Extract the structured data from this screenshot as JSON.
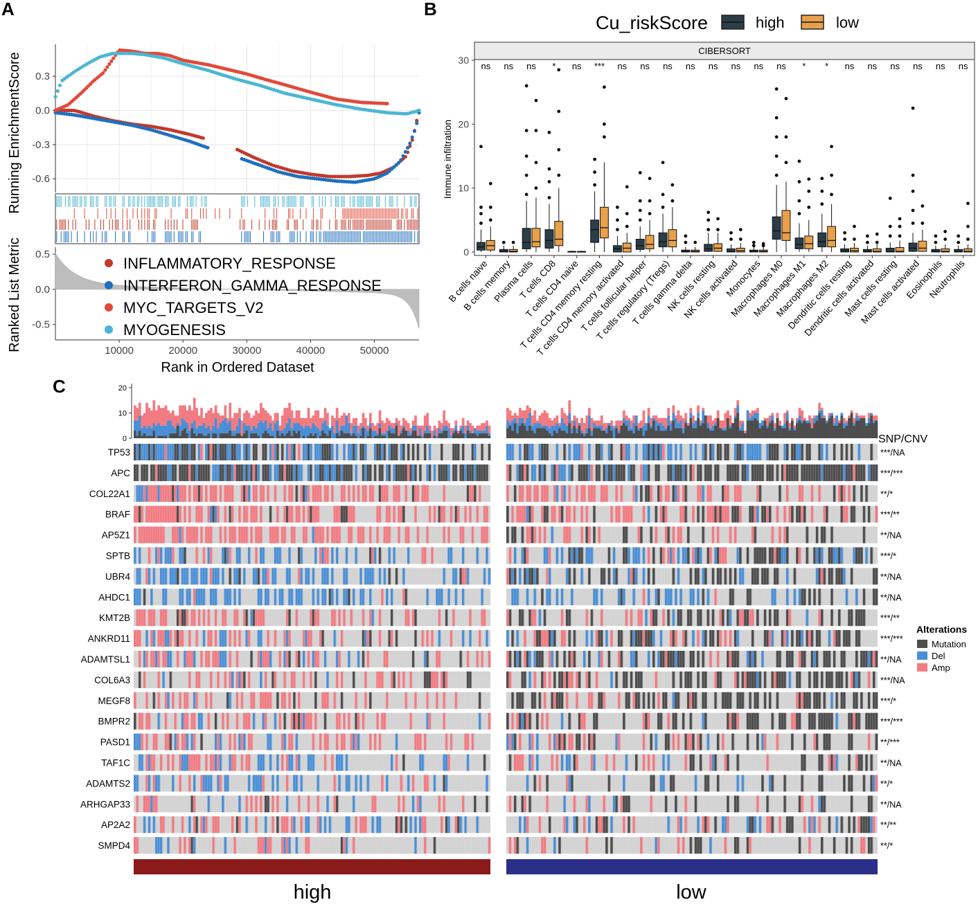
{
  "panel_labels": {
    "a": "A",
    "b": "B",
    "c": "C"
  },
  "colors": {
    "inflammatory": "#c0392b",
    "interferon": "#1f6fbf",
    "myc": "#e04a3a",
    "myogenesis": "#4bb6d3",
    "high": "#2b3e48",
    "low": "#e8a04a",
    "mutation": "#4d4d4d",
    "del": "#4a8fd6",
    "amp": "#f27b82",
    "none": "#d3d3d3",
    "high_bar": "#8b1a1a",
    "low_bar": "#2b2f8a"
  },
  "chart_data": [
    {
      "type": "line",
      "panel": "A",
      "title": "",
      "xlabel": "Rank in Ordered Dataset",
      "ylabel_top": "Running EnrichmentScore",
      "ylabel_bottom": "Ranked List Metric",
      "xlim": [
        0,
        57000
      ],
      "x_ticks": [
        10000,
        20000,
        30000,
        40000,
        50000
      ],
      "x_tick_labels": [
        "10000",
        "20000",
        "30000",
        "40000",
        "50000"
      ],
      "es_ylim": [
        -0.72,
        0.58
      ],
      "es_ticks": [
        0.3,
        0.0,
        -0.3,
        -0.6
      ],
      "es_tick_labels": [
        "0.3",
        "0.0",
        "-0.3",
        "-0.6"
      ],
      "metric_ylim": [
        -0.72,
        0.6
      ],
      "metric_ticks": [
        0.5,
        0.0,
        -0.5
      ],
      "metric_tick_labels": [
        "0.5",
        "0.0",
        "-0.5"
      ],
      "series": [
        {
          "name": "INFLAMMATORY_RESPONSE",
          "color_key": "inflammatory",
          "x": [
            0,
            3000,
            6000,
            9000,
            12000,
            15000,
            18000,
            21000,
            23000,
            28000,
            31000,
            34000,
            37000,
            40000,
            43000,
            46000,
            49000,
            51000,
            53000,
            55000,
            56000,
            57000
          ],
          "y": [
            0.0,
            0.0,
            -0.05,
            -0.09,
            -0.12,
            -0.14,
            -0.17,
            -0.21,
            -0.24,
            -0.33,
            -0.41,
            -0.48,
            -0.53,
            -0.56,
            -0.58,
            -0.58,
            -0.57,
            -0.55,
            -0.5,
            -0.4,
            -0.25,
            0.0
          ]
        },
        {
          "name": "INTERFERON_GAMMA_RESPONSE",
          "color_key": "interferon",
          "x": [
            0,
            3000,
            6000,
            9000,
            12000,
            15000,
            18000,
            21000,
            23500,
            29000,
            32000,
            35000,
            38000,
            41000,
            44000,
            47000,
            50000,
            52000,
            54000,
            55500,
            56500,
            57000
          ],
          "y": [
            -0.02,
            -0.04,
            -0.07,
            -0.1,
            -0.13,
            -0.17,
            -0.22,
            -0.27,
            -0.32,
            -0.42,
            -0.48,
            -0.54,
            -0.58,
            -0.6,
            -0.62,
            -0.63,
            -0.6,
            -0.55,
            -0.45,
            -0.3,
            -0.15,
            -0.02
          ]
        },
        {
          "name": "MYC_TARGETS_V2",
          "color_key": "myc",
          "x": [
            0,
            2000,
            4000,
            6000,
            7500,
            9000,
            10000,
            12000,
            14000,
            16000,
            18000,
            20000,
            22000,
            24000,
            27000,
            30000,
            33000,
            35000,
            40000,
            44000,
            48000,
            52000
          ],
          "y": [
            0.0,
            0.05,
            0.15,
            0.26,
            0.33,
            0.45,
            0.53,
            0.52,
            0.5,
            0.5,
            0.48,
            0.44,
            0.42,
            0.4,
            0.36,
            0.32,
            0.27,
            0.24,
            0.16,
            0.1,
            0.07,
            0.06
          ]
        },
        {
          "name": "MYOGENESIS",
          "color_key": "myogenesis",
          "x": [
            0,
            1000,
            3000,
            5000,
            7000,
            9000,
            10000,
            12000,
            14000,
            17000,
            20000,
            24000,
            28000,
            32000,
            36000,
            40000,
            44000,
            48000,
            52000,
            55000,
            56500,
            57000
          ],
          "y": [
            0.12,
            0.26,
            0.34,
            0.41,
            0.47,
            0.5,
            0.5,
            0.5,
            0.49,
            0.46,
            0.41,
            0.35,
            0.28,
            0.22,
            0.15,
            0.1,
            0.05,
            0.01,
            -0.02,
            -0.03,
            -0.01,
            0.0
          ]
        }
      ]
    },
    {
      "type": "box",
      "panel": "B",
      "title": "CIBERSORT",
      "legend_title": "Cu_riskScore",
      "legend_labels": [
        "high",
        "low"
      ],
      "ylabel": "Immune infiltration",
      "ylim": [
        0,
        30
      ],
      "y_ticks": [
        0,
        10,
        20,
        30
      ],
      "y_tick_labels": [
        "0",
        "10",
        "20",
        "30"
      ],
      "categories": [
        "B cells naive",
        "B cells memory",
        "Plasma cells",
        "T cells CD8",
        "T cells CD4 naive",
        "T cells CD4 memory resting",
        "T cells CD4 memory activated",
        "T cells follicular helper",
        "T cells regulatory (Tregs)",
        "T cells gamma delta",
        "NK cells resting",
        "NK cells activated",
        "Monocytes",
        "Macrophages M0",
        "Macrophages M1",
        "Macrophages M2",
        "Dendritic cells resting",
        "Dendritic cells activated",
        "Mast cells resting",
        "Mast cells activated",
        "Eosinophils",
        "Neutrophils"
      ],
      "significance": [
        "ns",
        "ns",
        "ns",
        "*",
        "ns",
        "***",
        "ns",
        "ns",
        "ns",
        "ns",
        "ns",
        "ns",
        "ns",
        "ns",
        "*",
        "*",
        "ns",
        "ns",
        "ns",
        "ns",
        "ns",
        "ns"
      ],
      "series": [
        {
          "name": "high",
          "q1": [
            0.3,
            0,
            0.5,
            0.6,
            0,
            1.5,
            0,
            0.4,
            0.8,
            0,
            0.1,
            0,
            0,
            2.0,
            0.5,
            0.8,
            0,
            0,
            0,
            0.1,
            0,
            0
          ],
          "median": [
            0.8,
            0.1,
            1.5,
            1.8,
            0,
            3.5,
            0.5,
            1.0,
            1.6,
            0.1,
            0.5,
            0.1,
            0.1,
            3.3,
            1.2,
            1.6,
            0.2,
            0.1,
            0.1,
            0.6,
            0.1,
            0.1
          ],
          "q3": [
            1.5,
            0.4,
            3.7,
            3.5,
            0.1,
            5.0,
            1.0,
            2.0,
            3.0,
            0.3,
            1.2,
            0.5,
            0.3,
            5.5,
            2.2,
            3.0,
            0.5,
            0.4,
            0.6,
            1.4,
            0.4,
            0.4
          ],
          "whisker_low": [
            0,
            0,
            0,
            0,
            0,
            0,
            0,
            0,
            0,
            0,
            0,
            0,
            0,
            0,
            0,
            0,
            0,
            0,
            0,
            0,
            0,
            0
          ],
          "whisker_high": [
            3.5,
            1.0,
            8.0,
            7.5,
            0.2,
            9.5,
            2.5,
            4.0,
            6.0,
            0.8,
            3.0,
            1.2,
            0.8,
            10.5,
            4.5,
            6.0,
            1.2,
            1.0,
            1.5,
            3.0,
            1.0,
            1.0
          ],
          "outliers": [
            [
              4.5,
              6,
              7,
              16.5
            ],
            [
              1.5
            ],
            [
              9,
              12,
              15,
              19,
              26
            ],
            [
              8.5,
              11,
              13,
              18.7
            ],
            [],
            [
              10.5,
              12.5,
              14.5
            ],
            [
              3.5,
              5,
              7
            ],
            [
              5,
              6.5,
              8,
              12.4
            ],
            [
              7,
              9,
              14
            ],
            [
              1.5,
              2.5
            ],
            [
              3.5,
              5,
              6.2
            ],
            [
              2,
              3
            ],
            [
              1,
              1.5
            ],
            [
              12,
              15,
              18,
              21,
              25.5
            ],
            [
              6,
              8,
              11,
              14.2
            ],
            [
              7.5,
              9.5,
              11.5
            ],
            [
              2,
              3
            ],
            [
              1.5,
              2.5
            ],
            [
              2.5,
              4,
              8.4
            ],
            [
              4.5,
              6.5,
              9.5,
              12,
              22.5
            ],
            [
              1.5,
              2.5
            ],
            [
              1.5,
              2.5
            ]
          ]
        },
        {
          "name": "low",
          "q1": [
            0.3,
            0,
            0.8,
            1.0,
            0,
            2.2,
            0,
            0.5,
            0.8,
            0,
            0.1,
            0,
            0,
            1.8,
            0.5,
            0.8,
            0,
            0,
            0,
            0.1,
            0,
            0
          ],
          "median": [
            1.0,
            0.1,
            1.6,
            2.0,
            0,
            3.8,
            0.6,
            1.2,
            1.8,
            0.1,
            0.6,
            0.2,
            0.1,
            3.0,
            1.3,
            1.8,
            0.2,
            0.1,
            0.1,
            0.6,
            0.1,
            0.1
          ],
          "q3": [
            1.8,
            0.4,
            3.7,
            4.8,
            0.1,
            7.0,
            1.4,
            2.6,
            3.5,
            0.3,
            1.3,
            0.6,
            0.3,
            6.5,
            2.5,
            4.0,
            0.6,
            0.5,
            0.7,
            1.7,
            0.5,
            0.5
          ],
          "whisker_low": [
            0,
            0,
            0,
            0,
            0,
            0,
            0,
            0,
            0,
            0,
            0,
            0,
            0,
            0,
            0,
            0,
            0,
            0,
            0,
            0,
            0,
            0
          ],
          "whisker_high": [
            4.0,
            1.0,
            8.5,
            10.0,
            0.2,
            14.0,
            3.0,
            5.0,
            7.0,
            0.8,
            3.0,
            1.4,
            0.8,
            11.0,
            5.0,
            7.5,
            1.4,
            1.2,
            1.8,
            3.5,
            1.2,
            1.2
          ],
          "outliers": [
            [
              5,
              7,
              10.7
            ],
            [
              1.5
            ],
            [
              10,
              14,
              19,
              23.7
            ],
            [
              12,
              16,
              22,
              28.5
            ],
            [],
            [
              18,
              20,
              25.8
            ],
            [
              4,
              6,
              10.2
            ],
            [
              6,
              8,
              11.5
            ],
            [
              8,
              10.5
            ],
            [
              1.5
            ],
            [
              3.5,
              5.2
            ],
            [
              2,
              3.5
            ],
            [
              1,
              1.3
            ],
            [
              14,
              18,
              24
            ],
            [
              7,
              9.5,
              11.4
            ],
            [
              9,
              12,
              16.5
            ],
            [
              2,
              4
            ],
            [
              1.5,
              2.8
            ],
            [
              2.5,
              4,
              5.2
            ],
            [
              4.5,
              7.2
            ],
            [
              2,
              3.2
            ],
            [
              2,
              4,
              7.6
            ]
          ]
        }
      ]
    },
    {
      "type": "heatmap",
      "panel": "C",
      "group_labels": [
        "high",
        "low"
      ],
      "genes": [
        "TP53",
        "APC",
        "COL22A1",
        "BRAF",
        "AP5Z1",
        "SPTB",
        "UBR4",
        "AHDC1",
        "KMT2B",
        "ANKRD11",
        "ADAMTSL1",
        "COL6A3",
        "MEGF8",
        "BMPR2",
        "PASD1",
        "TAF1C",
        "ADAMTS2",
        "ARHGAP33",
        "AP2A2",
        "SMPD4"
      ],
      "snp_cnv_header": "SNP/CNV",
      "snp_cnv": [
        "***/NA",
        "***/***",
        "**/*",
        "***/**",
        "**/NA",
        "***/*",
        "**/NA",
        "**/NA",
        "***/**",
        "***/***",
        "**/NA",
        "***/NA",
        "***/*",
        "***/***",
        "**/***",
        "**/NA",
        "**/*",
        "**/NA",
        "**/**",
        "**/*"
      ],
      "alteration_rates_high": {
        "mutation": [
          0.3,
          0.5,
          0.05,
          0.06,
          0.03,
          0.04,
          0.03,
          0.02,
          0.06,
          0.04,
          0.05,
          0.06,
          0.03,
          0.04,
          0.03,
          0.02,
          0.03,
          0.03,
          0.04,
          0.03
        ],
        "del": [
          0.45,
          0.25,
          0.05,
          0.05,
          0.03,
          0.3,
          0.4,
          0.45,
          0.05,
          0.15,
          0.18,
          0.05,
          0.05,
          0.06,
          0.12,
          0.2,
          0.3,
          0.08,
          0.2,
          0.12
        ],
        "amp": [
          0.03,
          0.08,
          0.55,
          0.55,
          0.6,
          0.12,
          0.05,
          0.03,
          0.35,
          0.3,
          0.25,
          0.35,
          0.3,
          0.3,
          0.25,
          0.2,
          0.1,
          0.25,
          0.2,
          0.18
        ]
      },
      "alteration_rates_low": {
        "mutation": [
          0.2,
          0.5,
          0.12,
          0.25,
          0.14,
          0.2,
          0.25,
          0.12,
          0.25,
          0.22,
          0.3,
          0.4,
          0.35,
          0.3,
          0.12,
          0.12,
          0.14,
          0.12,
          0.15,
          0.12
        ],
        "del": [
          0.38,
          0.18,
          0.03,
          0.03,
          0.01,
          0.25,
          0.18,
          0.28,
          0.03,
          0.08,
          0.12,
          0.03,
          0.03,
          0.05,
          0.08,
          0.1,
          0.1,
          0.05,
          0.12,
          0.05
        ],
        "amp": [
          0.03,
          0.06,
          0.35,
          0.3,
          0.25,
          0.1,
          0.04,
          0.02,
          0.18,
          0.15,
          0.12,
          0.15,
          0.12,
          0.15,
          0.15,
          0.12,
          0.06,
          0.12,
          0.12,
          0.1
        ]
      },
      "top_bar_ylim": [
        0,
        23
      ],
      "top_bar_ticks": [
        0,
        10,
        20
      ],
      "top_bar_tick_labels": [
        "0",
        "10",
        "20"
      ],
      "legend_title": "Alterations",
      "legend_labels": [
        "Mutation",
        "Del",
        "Amp"
      ]
    }
  ]
}
